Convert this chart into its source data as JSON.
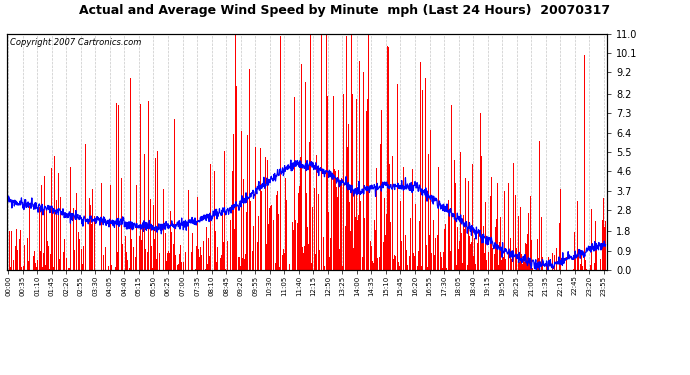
{
  "title": "Actual and Average Wind Speed by Minute  mph (Last 24 Hours)  20070317",
  "copyright_text": "Copyright 2007 Cartronics.com",
  "bar_color": "#FF0000",
  "line_color": "#0000FF",
  "background_color": "#FFFFFF",
  "grid_color": "#C8C8C8",
  "yticks": [
    0.0,
    0.9,
    1.8,
    2.8,
    3.7,
    4.6,
    5.5,
    6.4,
    7.3,
    8.2,
    9.2,
    10.1,
    11.0
  ],
  "ylim": [
    0.0,
    11.0
  ],
  "n_minutes": 1440,
  "tick_interval": 35,
  "bar_seed": 42,
  "avg_seed": 99,
  "title_fontsize": 9,
  "copyright_fontsize": 6,
  "tick_fontsize": 5,
  "ytick_fontsize": 7
}
